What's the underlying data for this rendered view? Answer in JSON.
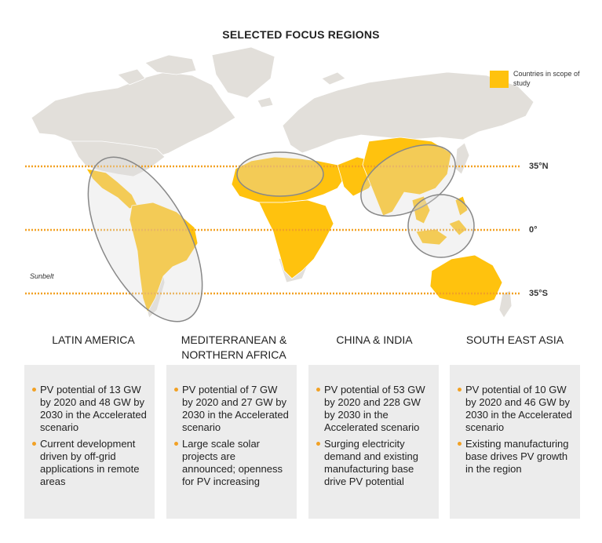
{
  "title": "SELECTED FOCUS REGIONS",
  "legend": {
    "label": "Countries in scope of study",
    "color": "#ffc20e"
  },
  "latitudes": {
    "north": "35°N",
    "equator": "0°",
    "south": "35°S"
  },
  "sunbelt_label": "Sunbelt",
  "colors": {
    "land": "#e2dfda",
    "focus": "#ffc20e",
    "line": "#f2a124",
    "ellipse": "#888888",
    "card": "#ececec"
  },
  "regions": [
    {
      "title": "LATIN AMERICA",
      "bullets": [
        "PV potential of 13 GW by 2020 and 48 GW by 2030 in the Accelerated scenario",
        "Current development driven by off-grid applications in remote areas"
      ]
    },
    {
      "title": "MEDITERRANEAN & NORTHERN AFRICA",
      "bullets": [
        "PV potential of 7 GW by 2020 and 27 GW by 2030 in the Accelerated scenario",
        "Large scale solar projects are announced; openness for PV increasing"
      ]
    },
    {
      "title": "CHINA & INDIA",
      "bullets": [
        "PV potential of 53 GW by 2020 and 228 GW by 2030 in the Accelerated scenario",
        "Surging electricity demand and existing manufacturing base drive PV potential"
      ]
    },
    {
      "title": "SOUTH EAST ASIA",
      "bullets": [
        "PV potential of 10 GW by 2020 and 46 GW by 2030 in the Accelerated scenario",
        "Existing manufacturing base drives PV growth in the region"
      ]
    }
  ]
}
